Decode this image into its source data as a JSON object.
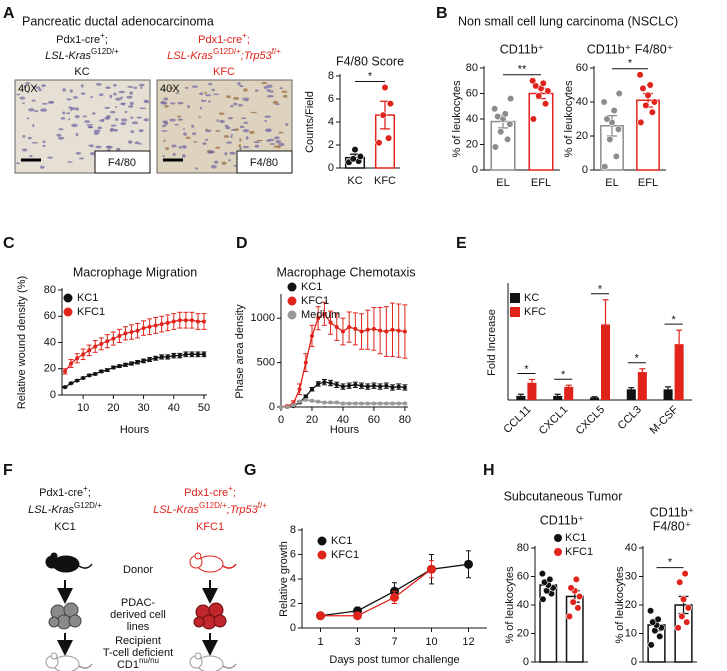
{
  "panel_labels": [
    "A",
    "B",
    "C",
    "D",
    "E",
    "F",
    "G",
    "H"
  ],
  "panel_a": {
    "title": "Pancreatic ductal adenocarcinoma",
    "images": [
      {
        "color": "#111111",
        "magnification": "40X",
        "stain": "F4/80",
        "genotype": [
          [
            {
              "text": "Pdx1-cre"
            },
            {
              "text": "+",
              "sup": true
            },
            {
              "text": ";"
            }
          ],
          [
            {
              "text": "LSL-Kras",
              "italic": true
            },
            {
              "text": "G12D/+",
              "sup": true
            }
          ],
          [
            {
              "text": "KC"
            }
          ]
        ]
      },
      {
        "color": "#e0231b",
        "magnification": "40X",
        "stain": "F4/80",
        "genotype": [
          [
            {
              "text": "Pdx1-cre"
            },
            {
              "text": "+",
              "sup": true
            },
            {
              "text": ";"
            }
          ],
          [
            {
              "text": "LSL-Kras",
              "italic": true
            },
            {
              "text": "G12D/+",
              "sup": true
            },
            {
              "text": ";Trp53",
              "italic": true
            },
            {
              "text": "f/+",
              "sup": true
            }
          ],
          [
            {
              "text": "KFC"
            }
          ]
        ]
      }
    ]
  },
  "panel_b": {
    "title": "Non small cell lung carcinoma (NSCLC)"
  },
  "panel_f": {
    "columns": [
      {
        "color": "#111111",
        "genotype": [
          [
            {
              "text": "Pdx1-cre"
            },
            {
              "text": "+",
              "sup": true
            },
            {
              "text": ";"
            }
          ],
          [
            {
              "text": "LSL-Kras",
              "italic": true
            },
            {
              "text": "G12D/+",
              "sup": true
            }
          ],
          [
            {
              "text": "KC1"
            }
          ]
        ]
      },
      {
        "color": "#e0231b",
        "genotype": [
          [
            {
              "text": "Pdx1-cre"
            },
            {
              "text": "+",
              "sup": true
            },
            {
              "text": ";"
            }
          ],
          [
            {
              "text": "LSL-Kras",
              "italic": true
            },
            {
              "text": "G12D/+",
              "sup": true
            },
            {
              "text": ";Trp53",
              "italic": true
            },
            {
              "text": "f/+",
              "sup": true
            }
          ],
          [
            {
              "text": "KFC1"
            }
          ]
        ]
      }
    ],
    "donor": [
      [
        {
          "text": "Donor"
        }
      ]
    ],
    "cells": [
      [
        {
          "text": "PDAC-"
        }
      ],
      [
        {
          "text": "derived cell"
        }
      ],
      [
        {
          "text": "lines"
        }
      ]
    ],
    "recipient": [
      [
        {
          "text": "Recipient"
        }
      ],
      [
        {
          "text": "T-cell deficient"
        }
      ],
      [
        {
          "text": "CD1"
        },
        {
          "text": "nu/nu",
          "sup": true
        }
      ]
    ]
  },
  "panel_h": {
    "title": "Subcutaneous Tumor",
    "legend": [
      {
        "name": "KC1",
        "color": "#111111"
      },
      {
        "name": "KFC1",
        "color": "#e0231b"
      }
    ]
  },
  "chart_data": [
    {
      "type": "bar",
      "title": "F4/80 Score",
      "ylabel": "Counts/Field",
      "categories": [
        "KC",
        "KFC"
      ],
      "values": [
        0.9,
        4.6
      ],
      "errors": [
        0.3,
        1.2
      ],
      "colors": [
        "#111111",
        "#e0231b"
      ],
      "point_colors": [
        "#111111",
        "#e0231b"
      ],
      "points": [
        [
          0.5,
          0.6,
          0.8,
          1.0,
          1.6
        ],
        [
          2.2,
          2.6,
          4.6,
          5.6,
          7.0
        ]
      ],
      "ylim": [
        0,
        8
      ],
      "yticks": [
        0,
        2,
        4,
        6,
        8
      ],
      "significance": "*"
    },
    {
      "type": "bar",
      "title": "CD11b⁺",
      "ylabel": "% of leukocytes",
      "categories": [
        "EL",
        "EFL"
      ],
      "values": [
        38,
        60
      ],
      "errors": [
        5,
        4
      ],
      "colors": [
        "#8c8c8c",
        "#e0231b"
      ],
      "point_colors": [
        "#8c8c8c",
        "#e0231b"
      ],
      "points": [
        [
          18,
          24,
          30,
          36,
          40,
          42,
          44,
          48,
          56
        ],
        [
          40,
          52,
          58,
          62,
          64,
          66,
          68,
          70
        ]
      ],
      "ylim": [
        0,
        80
      ],
      "yticks": [
        0,
        20,
        40,
        60,
        80
      ],
      "significance": "**"
    },
    {
      "type": "bar",
      "title": "CD11b⁺ F4/80⁺",
      "ylabel": "% of leukocytes",
      "categories": [
        "EL",
        "EFL"
      ],
      "values": [
        26,
        41
      ],
      "errors": [
        6,
        4
      ],
      "colors": [
        "#8c8c8c",
        "#e0231b"
      ],
      "point_colors": [
        "#8c8c8c",
        "#e0231b"
      ],
      "points": [
        [
          2,
          8,
          18,
          24,
          28,
          30,
          35,
          40,
          45
        ],
        [
          28,
          34,
          38,
          40,
          44,
          48,
          50,
          56
        ]
      ],
      "ylim": [
        0,
        60
      ],
      "yticks": [
        0,
        20,
        40,
        60
      ],
      "significance": "*"
    },
    {
      "type": "line",
      "title": "Macrophage Migration",
      "xlabel": "Hours",
      "ylabel": "Relative wound density (%)",
      "legend": "top-left",
      "x": [
        4,
        6,
        8,
        10,
        12,
        14,
        16,
        18,
        20,
        22,
        24,
        26,
        28,
        30,
        32,
        34,
        36,
        38,
        40,
        42,
        44,
        46,
        48,
        50
      ],
      "xlim": [
        3,
        51
      ],
      "xticks": [
        10,
        20,
        30,
        40,
        50
      ],
      "ylim": [
        0,
        80
      ],
      "yticks": [
        0,
        20,
        40,
        60,
        80
      ],
      "series": [
        {
          "name": "KC1",
          "color": "#111111",
          "values": [
            6,
            9,
            11,
            13,
            15,
            16,
            18,
            19,
            21,
            22,
            23,
            24,
            25,
            26,
            27,
            28,
            29,
            29,
            30,
            30,
            31,
            31,
            31,
            31
          ],
          "errors": [
            0.5,
            0.5,
            0.6,
            0.7,
            0.8,
            0.8,
            0.9,
            1,
            1,
            1,
            1.2,
            1.2,
            1.3,
            1.4,
            1.5,
            1.5,
            1.6,
            1.6,
            1.7,
            1.7,
            1.8,
            1.8,
            1.8,
            1.8
          ]
        },
        {
          "name": "KFC1",
          "color": "#e0231b",
          "values": [
            18,
            24,
            28,
            31,
            34,
            37,
            39,
            41,
            43,
            45,
            47,
            48,
            49,
            51,
            52,
            53,
            54,
            55,
            56,
            57,
            57,
            57,
            56,
            56
          ],
          "errors": [
            2,
            3,
            3.5,
            4,
            4,
            4.5,
            4.5,
            5,
            5,
            5,
            5,
            5.5,
            5.5,
            5.5,
            6,
            6,
            6,
            6,
            6,
            6,
            6,
            6,
            6,
            6
          ]
        }
      ]
    },
    {
      "type": "line",
      "title": "Macrophage Chemotaxis",
      "xlabel": "Hours",
      "ylabel": "Phase area density",
      "legend": "top-left",
      "x": [
        0,
        4,
        8,
        12,
        16,
        20,
        24,
        28,
        32,
        36,
        40,
        44,
        48,
        52,
        56,
        60,
        64,
        68,
        72,
        76,
        80
      ],
      "xlim": [
        0,
        82
      ],
      "xticks": [
        0,
        20,
        40,
        60,
        80
      ],
      "ylim": [
        0,
        1250
      ],
      "yticks": [
        0,
        500,
        1000
      ],
      "series": [
        {
          "name": "KC1",
          "color": "#111111",
          "values": [
            0,
            0,
            10,
            50,
            120,
            200,
            260,
            280,
            270,
            250,
            230,
            240,
            250,
            240,
            230,
            240,
            230,
            240,
            220,
            230,
            220
          ],
          "errors": [
            0,
            0,
            5,
            10,
            15,
            20,
            25,
            30,
            30,
            30,
            30,
            30,
            30,
            30,
            30,
            30,
            30,
            30,
            30,
            30,
            30
          ]
        },
        {
          "name": "KFC1",
          "color": "#e0231b",
          "values": [
            0,
            10,
            40,
            200,
            500,
            800,
            1000,
            1050,
            950,
            900,
            850,
            900,
            880,
            850,
            870,
            880,
            860,
            850,
            870,
            860,
            850
          ],
          "errors": [
            0,
            10,
            30,
            60,
            100,
            120,
            130,
            130,
            130,
            150,
            150,
            170,
            180,
            200,
            220,
            240,
            260,
            280,
            300,
            300,
            300
          ]
        },
        {
          "name": "Medium",
          "color": "#9a9a9a",
          "values": [
            0,
            0,
            20,
            60,
            80,
            70,
            60,
            50,
            50,
            50,
            40,
            40,
            40,
            40,
            40,
            40,
            40,
            40,
            40,
            40,
            40
          ],
          "errors": [
            0,
            0,
            5,
            10,
            10,
            10,
            10,
            10,
            10,
            10,
            10,
            10,
            10,
            10,
            10,
            10,
            10,
            10,
            10,
            10,
            10
          ]
        }
      ]
    },
    {
      "type": "bar",
      "ylabel": "Fold Increase",
      "legend": "top-left",
      "categories": [
        "CCL11",
        "CXCL1",
        "CXCL5",
        "CCL3",
        "M-CSF"
      ],
      "ylim": [
        0,
        14
      ],
      "series": [
        {
          "name": "KC",
          "color": "#111111",
          "values": [
            0.5,
            0.5,
            0.3,
            1.3,
            1.3
          ],
          "errors": [
            0.2,
            0.2,
            0.1,
            0.2,
            0.3
          ]
        },
        {
          "name": "KFC",
          "color": "#e0231b",
          "values": [
            2.1,
            1.6,
            9.2,
            3.4,
            6.8
          ],
          "errors": [
            0.4,
            0.2,
            3.0,
            0.4,
            1.7
          ]
        }
      ],
      "significance": [
        "*",
        "*",
        "*",
        "*",
        "*"
      ]
    },
    {
      "type": "line",
      "xlabel": "Days post tumor challenge",
      "ylabel": "Relative growth",
      "legend": "top-left",
      "categories": [
        "1",
        "3",
        "7",
        "10",
        "12"
      ],
      "ylim": [
        0,
        8
      ],
      "yticks": [
        0,
        2,
        4,
        6,
        8
      ],
      "series": [
        {
          "name": "KC1",
          "color": "#111111",
          "values": [
            1,
            1.4,
            3,
            4.8,
            5.2
          ],
          "errors": [
            0,
            0.3,
            0.7,
            1.2,
            1.1
          ]
        },
        {
          "name": "KFC1",
          "color": "#e0231b",
          "values": [
            1,
            1.0,
            2.5,
            4.8,
            null
          ],
          "errors": [
            0,
            0.1,
            0.5,
            0.7,
            null
          ]
        }
      ]
    },
    {
      "type": "bar",
      "title": "CD11b⁺",
      "ylabel": "% of leukocytes",
      "values": [
        54,
        46
      ],
      "errors": [
        3,
        4
      ],
      "colors": [
        "#111111",
        "#111111"
      ],
      "point_colors": [
        "#111111",
        "#e0231b"
      ],
      "points": [
        [
          44,
          48,
          50,
          52,
          54,
          56,
          58,
          62
        ],
        [
          32,
          38,
          42,
          46,
          50,
          52,
          58
        ]
      ],
      "ylim": [
        0,
        80
      ],
      "yticks": [
        0,
        20,
        40,
        60,
        80
      ]
    },
    {
      "type": "bar",
      "title": [
        "CD11b⁺",
        "F4/80⁺"
      ],
      "ylabel": "% of leukocytes",
      "values": [
        13,
        20
      ],
      "errors": [
        2,
        3
      ],
      "colors": [
        "#111111",
        "#111111"
      ],
      "point_colors": [
        "#111111",
        "#e0231b"
      ],
      "points": [
        [
          6,
          9,
          11,
          12,
          13,
          14,
          15,
          18
        ],
        [
          12,
          14,
          16,
          19,
          22,
          28,
          31
        ]
      ],
      "ylim": [
        0,
        40
      ],
      "yticks": [
        0,
        10,
        20,
        30,
        40
      ],
      "significance": "*"
    }
  ]
}
